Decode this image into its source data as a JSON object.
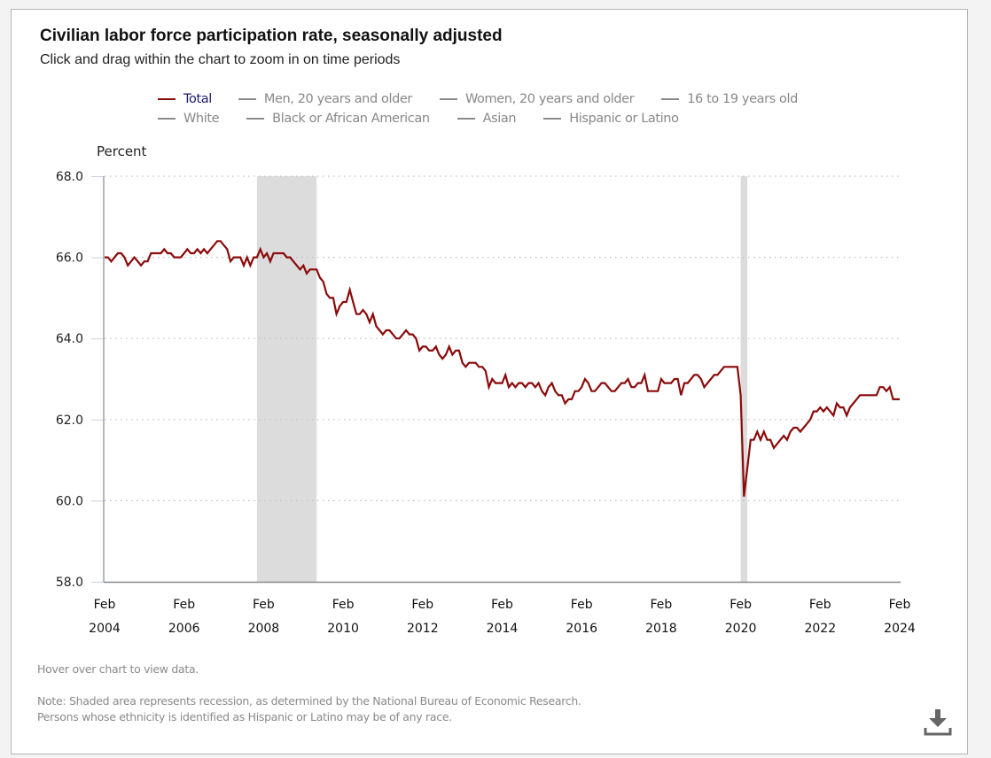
{
  "page": {
    "title": "Civilian labor force participation rate, seasonally adjusted",
    "subtitle": "Click and drag within the chart to zoom in on time periods",
    "hover_hint": "Hover over chart to view data.",
    "note_line1": "Note: Shaded area represents recession, as determined by the National Bureau of Economic Research.",
    "note_line2": "Persons whose ethnicity is identified as Hispanic or Latino may be of any race.",
    "download_icon": "download-icon"
  },
  "legend": {
    "rows": [
      [
        {
          "label": "Total",
          "active": true
        },
        {
          "label": "Men, 20 years and older",
          "active": false
        },
        {
          "label": "Women, 20 years and older",
          "active": false
        },
        {
          "label": "16 to 19 years old",
          "active": false
        }
      ],
      [
        {
          "label": "White",
          "active": false
        },
        {
          "label": "Black or African American",
          "active": false
        },
        {
          "label": "Asian",
          "active": false
        },
        {
          "label": "Hispanic or Latino",
          "active": false
        }
      ]
    ]
  },
  "colors": {
    "total_series": "#8b0a0a",
    "inactive_series": "#8a8a8a",
    "recession": "#dcdcdc",
    "grid": "#bdbdbd"
  },
  "chart_data": {
    "type": "line",
    "title": "Civilian labor force participation rate, seasonally adjusted",
    "ylabel": "Percent",
    "xlabel": "",
    "ylim": [
      58.0,
      68.0
    ],
    "yticks": [
      "58.0",
      "60.0",
      "62.0",
      "64.0",
      "66.0",
      "68.0"
    ],
    "ytick_values": [
      58,
      60,
      62,
      64,
      66,
      68
    ],
    "xticks": [
      {
        "month": "Feb",
        "year": "2004"
      },
      {
        "month": "Feb",
        "year": "2006"
      },
      {
        "month": "Feb",
        "year": "2008"
      },
      {
        "month": "Feb",
        "year": "2010"
      },
      {
        "month": "Feb",
        "year": "2012"
      },
      {
        "month": "Feb",
        "year": "2014"
      },
      {
        "month": "Feb",
        "year": "2016"
      },
      {
        "month": "Feb",
        "year": "2018"
      },
      {
        "month": "Feb",
        "year": "2020"
      },
      {
        "month": "Feb",
        "year": "2022"
      },
      {
        "month": "Feb",
        "year": "2024"
      }
    ],
    "x_start": "2004-02",
    "x_end": "2024-02",
    "grid": "horizontal dotted",
    "legend_position": "top",
    "recessions": [
      {
        "start": "2007-12",
        "end": "2009-06"
      },
      {
        "start": "2020-02",
        "end": "2020-04"
      }
    ],
    "series": [
      {
        "name": "Total",
        "start": "2004-02",
        "frequency": "monthly",
        "values": [
          66.0,
          66.0,
          65.9,
          66.0,
          66.1,
          66.1,
          66.0,
          65.8,
          65.9,
          66.0,
          65.9,
          65.8,
          65.9,
          65.9,
          66.1,
          66.1,
          66.1,
          66.1,
          66.2,
          66.1,
          66.1,
          66.0,
          66.0,
          66.0,
          66.1,
          66.2,
          66.1,
          66.1,
          66.2,
          66.1,
          66.2,
          66.1,
          66.2,
          66.3,
          66.4,
          66.4,
          66.3,
          66.2,
          65.9,
          66.0,
          66.0,
          66.0,
          65.8,
          66.0,
          65.8,
          66.0,
          66.0,
          66.2,
          66.0,
          66.1,
          65.9,
          66.1,
          66.1,
          66.1,
          66.1,
          66.0,
          66.0,
          65.9,
          65.8,
          65.7,
          65.8,
          65.6,
          65.7,
          65.7,
          65.7,
          65.5,
          65.4,
          65.1,
          65.0,
          65.0,
          64.6,
          64.8,
          64.9,
          64.9,
          65.2,
          64.9,
          64.6,
          64.6,
          64.7,
          64.6,
          64.4,
          64.6,
          64.3,
          64.2,
          64.1,
          64.2,
          64.2,
          64.1,
          64.0,
          64.0,
          64.1,
          64.2,
          64.1,
          64.1,
          64.0,
          63.7,
          63.8,
          63.8,
          63.7,
          63.7,
          63.8,
          63.6,
          63.5,
          63.6,
          63.8,
          63.6,
          63.7,
          63.7,
          63.4,
          63.3,
          63.4,
          63.4,
          63.4,
          63.3,
          63.3,
          63.2,
          62.8,
          63.0,
          62.9,
          62.9,
          62.9,
          63.1,
          62.8,
          62.9,
          62.8,
          62.9,
          62.9,
          62.8,
          62.9,
          62.9,
          62.8,
          62.9,
          62.7,
          62.6,
          62.8,
          62.9,
          62.7,
          62.6,
          62.6,
          62.4,
          62.5,
          62.5,
          62.7,
          62.7,
          62.8,
          63.0,
          62.9,
          62.7,
          62.7,
          62.8,
          62.9,
          62.9,
          62.8,
          62.7,
          62.7,
          62.8,
          62.9,
          62.9,
          63.0,
          62.8,
          62.8,
          62.9,
          62.9,
          63.1,
          62.7,
          62.7,
          62.7,
          62.7,
          63.0,
          62.9,
          62.9,
          62.9,
          63.0,
          63.0,
          62.6,
          62.9,
          62.9,
          63.0,
          63.1,
          63.1,
          63.0,
          62.8,
          62.9,
          63.0,
          63.1,
          63.1,
          63.2,
          63.3,
          63.3,
          63.3,
          63.3,
          63.3,
          62.6,
          60.1,
          60.8,
          61.5,
          61.5,
          61.7,
          61.5,
          61.7,
          61.5,
          61.5,
          61.3,
          61.4,
          61.5,
          61.6,
          61.5,
          61.7,
          61.8,
          61.8,
          61.7,
          61.8,
          61.9,
          62.0,
          62.2,
          62.2,
          62.3,
          62.2,
          62.3,
          62.2,
          62.1,
          62.4,
          62.3,
          62.3,
          62.1,
          62.3,
          62.4,
          62.5,
          62.6,
          62.6,
          62.6,
          62.6,
          62.6,
          62.6,
          62.8,
          62.8,
          62.7,
          62.8,
          62.5,
          62.5,
          62.5
        ]
      }
    ]
  }
}
